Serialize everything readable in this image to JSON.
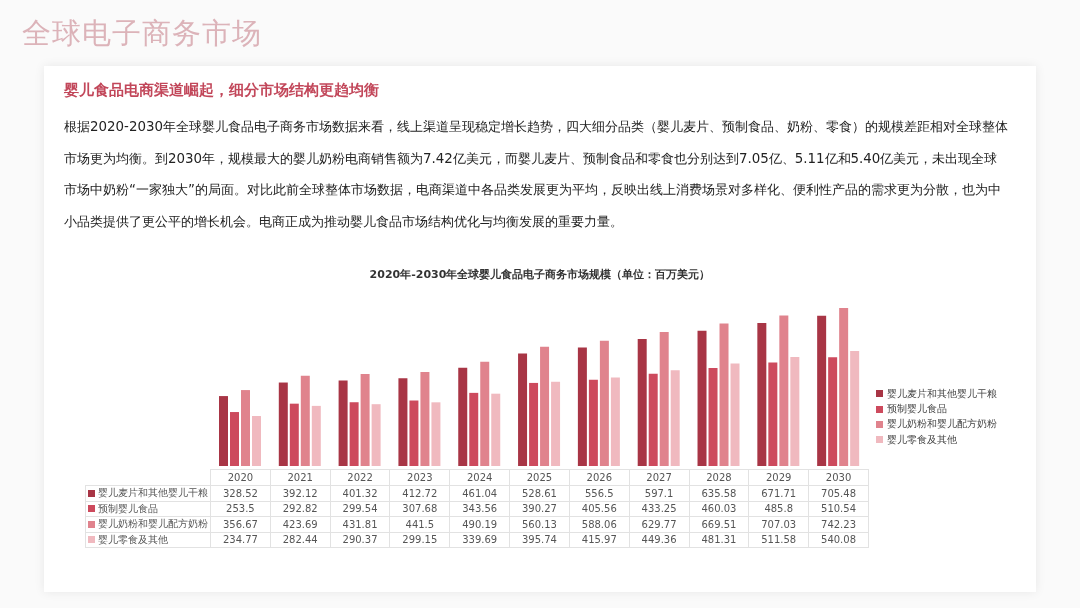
{
  "chart_data": {
    "type": "bar",
    "title": "2020年-2030年全球婴儿食品电子商务市场规模（单位：百万美元）",
    "subtitle": "婴儿食品电商渠道崛起，细分市场结构更趋均衡",
    "annotations": [
      "全球电子商务市场",
      "根据2020-2030年全球婴儿食品电子商务市场数据来看，线上渠道呈现稳定增长趋势，四大细分品类（婴儿麦片、预制食品、奶粉、零食）的规模差距相对全球整体市场更为均衡。到2030年，规模最大的婴儿奶粉电商销售额为7.42亿美元，而婴儿麦片、预制食品和零食也分别达到7.05亿、5.11亿和5.40亿美元，未出现全球市场中奶粉“一家独大”的局面。对比此前全球整体市场数据，电商渠道中各品类发展更为平均，反映出线上消费场景对多样化、便利性产品的需求更为分散，也为中小品类提供了更公平的增长机会。电商正成为推动婴儿食品市场结构优化与均衡发展的重要力量。"
    ],
    "categories": [
      "2020",
      "2021",
      "2022",
      "2023",
      "2024",
      "2025",
      "2026",
      "2027",
      "2028",
      "2029",
      "2030"
    ],
    "series": [
      {
        "name": "婴儿麦片和其他婴儿干粮",
        "color": "#a83545",
        "values": [
          328.52,
          392.12,
          401.32,
          412.72,
          461.04,
          528.61,
          556.5,
          597.1,
          635.58,
          671.71,
          705.48
        ]
      },
      {
        "name": "预制婴儿食品",
        "color": "#cd4a5d",
        "values": [
          253.5,
          292.82,
          299.54,
          307.68,
          343.56,
          390.27,
          405.56,
          433.25,
          460.03,
          485.8,
          510.54
        ]
      },
      {
        "name": "婴儿奶粉和婴儿配方奶粉",
        "color": "#e0838d",
        "values": [
          356.67,
          423.69,
          431.81,
          441.5,
          490.19,
          560.13,
          588.06,
          629.77,
          669.51,
          707.03,
          742.23
        ]
      },
      {
        "name": "婴儿零食及其他",
        "color": "#f0b9bf",
        "values": [
          234.77,
          282.44,
          290.37,
          299.15,
          339.69,
          395.74,
          415.97,
          449.36,
          481.31,
          511.58,
          540.08
        ]
      }
    ],
    "legend": "right",
    "data_labels": true
  }
}
